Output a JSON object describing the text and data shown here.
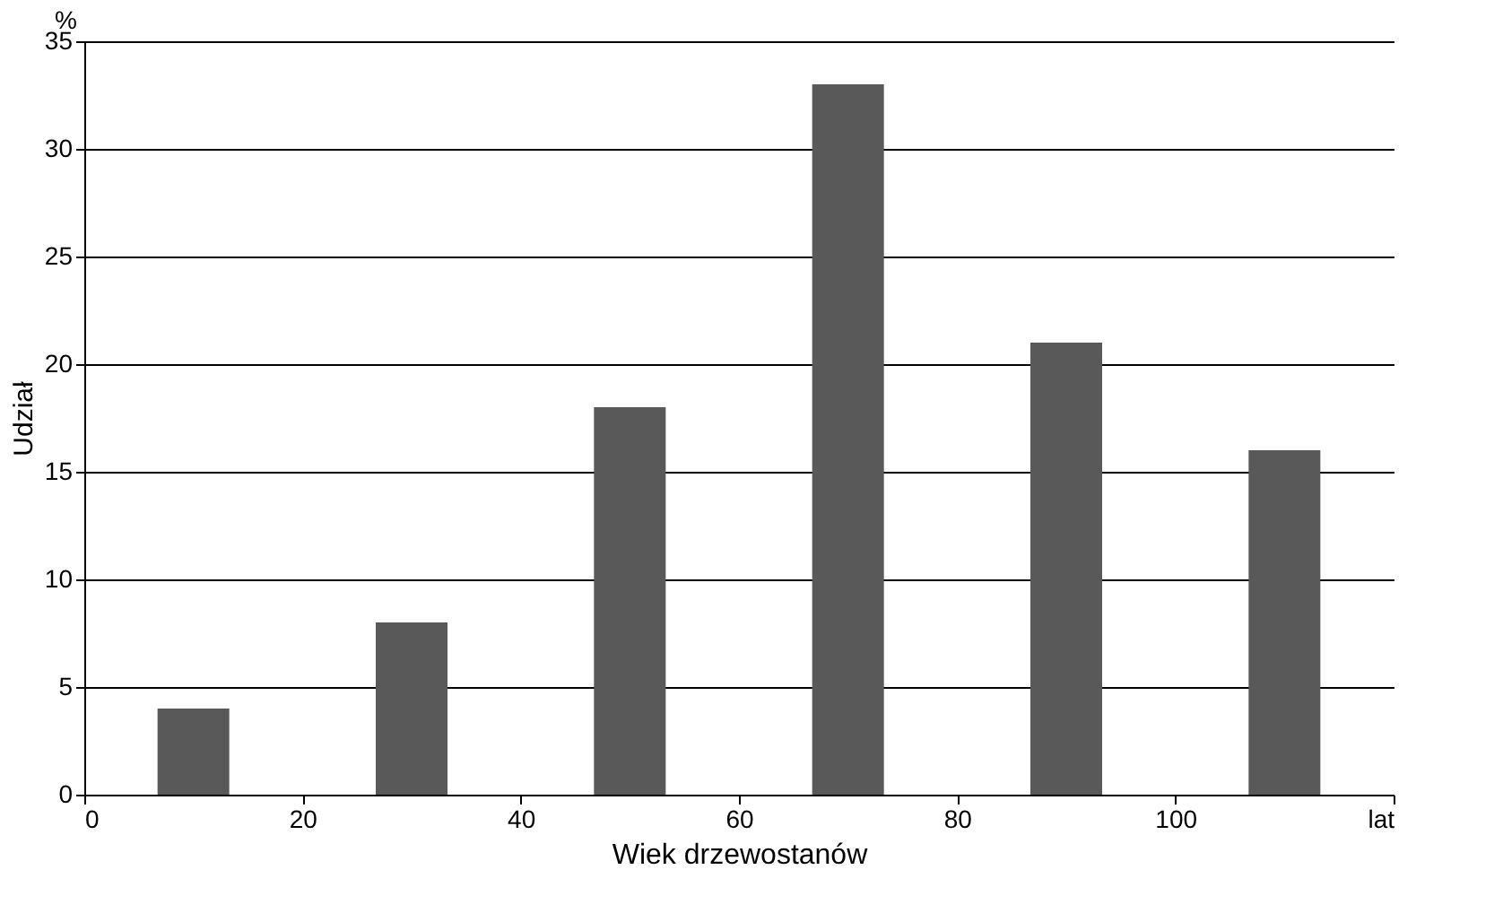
{
  "chart_data": {
    "type": "bar",
    "x": [
      10,
      30,
      50,
      70,
      90,
      110
    ],
    "values": [
      4,
      8,
      18,
      33,
      21,
      16
    ],
    "color": "#595959",
    "xlabel": "Wiek drzewostanów",
    "ylabel": "Udział",
    "annotations": [
      "%"
    ],
    "xlim": [
      0,
      120
    ],
    "xticks": [
      0,
      20,
      40,
      60,
      80,
      100,
      {
        "value": 120,
        "label": "lat"
      }
    ],
    "ylim": [
      0,
      35
    ],
    "yticks": [
      0,
      5,
      10,
      15,
      20,
      25,
      30,
      35
    ],
    "grid": "y"
  }
}
